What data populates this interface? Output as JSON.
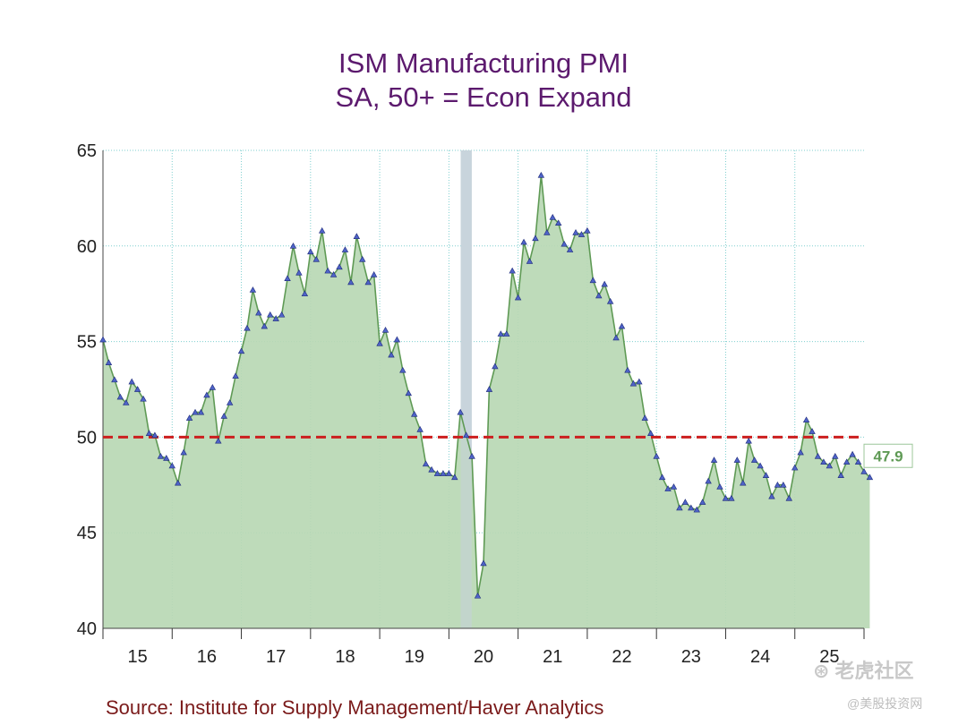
{
  "chart_data": {
    "type": "area",
    "title": "ISM Manufacturing PMI",
    "subtitle": "SA, 50+ = Econ Expand",
    "xlabel": "",
    "ylabel": "",
    "ylim": [
      40,
      65
    ],
    "yticks": [
      40,
      45,
      50,
      55,
      60,
      65
    ],
    "xlim": [
      2015.0,
      2026.0
    ],
    "xtick_labels": [
      "15",
      "16",
      "17",
      "18",
      "19",
      "20",
      "21",
      "22",
      "23",
      "24",
      "25"
    ],
    "grid": true,
    "reference_line": {
      "value": 50,
      "style": "dashed",
      "color": "#cc1f1f"
    },
    "recession_shade": {
      "start": 2020.17,
      "end": 2020.33
    },
    "last_value_label": "47.9",
    "series": [
      {
        "name": "ISM Manufacturing PMI",
        "start": 2015.0,
        "step": 0.08333,
        "values": [
          55.1,
          53.9,
          53.0,
          52.1,
          51.8,
          52.9,
          52.5,
          52.0,
          50.2,
          50.1,
          49.0,
          48.9,
          48.5,
          47.6,
          49.2,
          51.0,
          51.3,
          51.3,
          52.2,
          52.6,
          49.8,
          51.1,
          51.8,
          53.2,
          54.5,
          55.7,
          57.7,
          56.5,
          55.8,
          56.4,
          56.2,
          56.4,
          58.3,
          60.0,
          58.6,
          57.5,
          59.7,
          59.3,
          60.8,
          58.7,
          58.5,
          58.9,
          59.8,
          58.1,
          60.5,
          59.3,
          58.1,
          58.5,
          54.9,
          55.6,
          54.3,
          55.1,
          53.5,
          52.3,
          51.2,
          50.4,
          48.6,
          48.3,
          48.1,
          48.1,
          48.1,
          47.9,
          51.3,
          50.1,
          49.0,
          41.7,
          43.4,
          52.5,
          53.7,
          55.4,
          55.4,
          58.7,
          57.3,
          60.2,
          59.2,
          60.4,
          63.7,
          60.7,
          61.5,
          61.2,
          60.1,
          59.8,
          60.7,
          60.6,
          60.8,
          58.2,
          57.4,
          58.0,
          57.1,
          55.2,
          55.8,
          53.5,
          52.8,
          52.9,
          51.0,
          50.2,
          49.0,
          47.9,
          47.3,
          47.4,
          46.3,
          46.6,
          46.3,
          46.2,
          46.6,
          47.7,
          48.8,
          47.4,
          46.8,
          46.8,
          48.8,
          47.6,
          49.8,
          48.8,
          48.5,
          48.0,
          46.9,
          47.5,
          47.5,
          46.8,
          48.4,
          49.2,
          50.9,
          50.3,
          49.0,
          48.7,
          48.5,
          49.0,
          48.0,
          48.7,
          49.1,
          48.7,
          48.2,
          47.9
        ]
      }
    ]
  },
  "footer": {
    "source": "Source:  Institute for Supply Management/Haver Analytics",
    "watermark_main": "⊛ 老虎社区",
    "watermark_sub": "@美股投资网"
  },
  "colors": {
    "title": "#5c1a6e",
    "area_fill": "#b8d8b4",
    "line": "#5f9a55",
    "marker_fill": "#4f63c8",
    "grid": "#7fcfcf",
    "reference": "#cc1f1f",
    "recession": "#c8d4dc",
    "value_label": "#5f9a55",
    "source": "#7a1a1a"
  }
}
